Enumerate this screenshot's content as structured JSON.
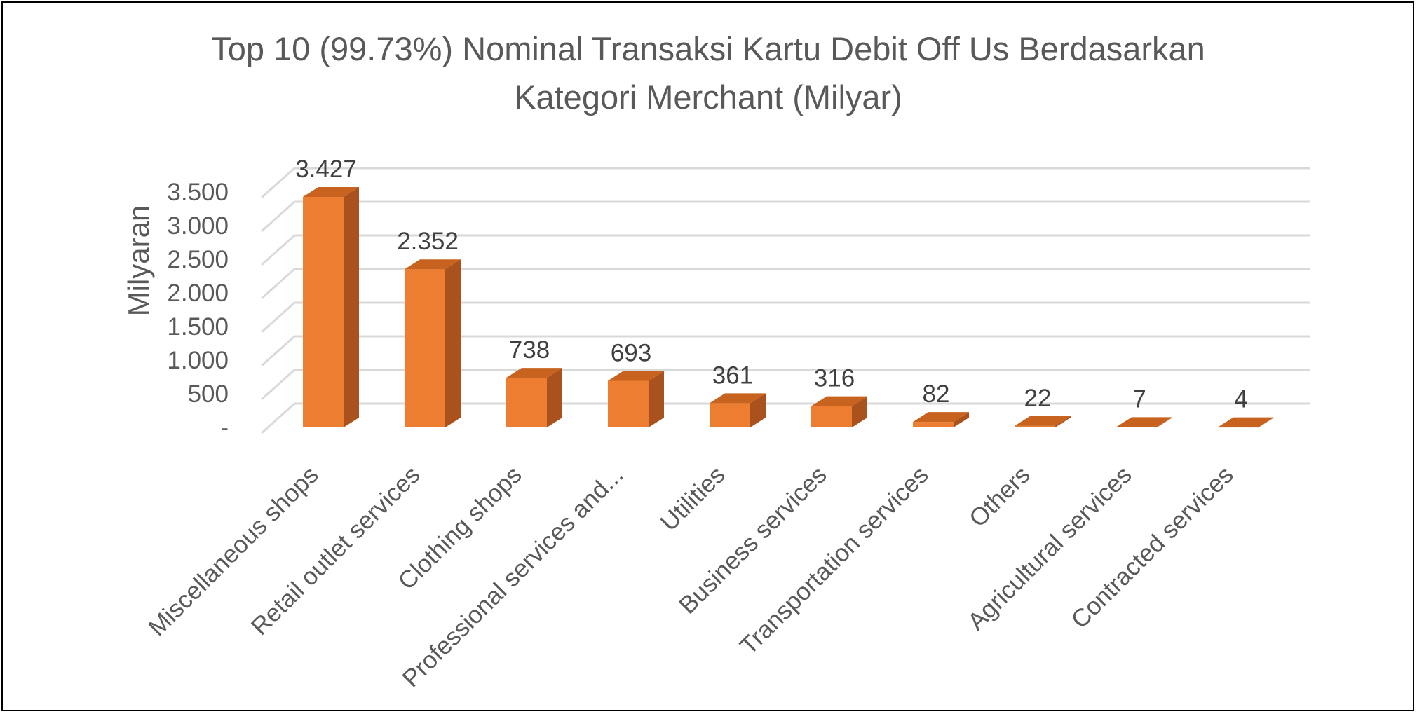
{
  "chart_data": {
    "type": "bar",
    "title_lines": [
      "Top 10 (99.73%) Nominal Transaksi Kartu Debit Off Us Berdasarkan",
      "Kategori Merchant (Milyar)"
    ],
    "ylabel": "Milyaran",
    "xlabel": "",
    "ylim": [
      0,
      3500
    ],
    "y_ticks": [
      {
        "value": 0,
        "label": "-"
      },
      {
        "value": 500,
        "label": "500"
      },
      {
        "value": 1000,
        "label": "1.000"
      },
      {
        "value": 1500,
        "label": "1.500"
      },
      {
        "value": 2000,
        "label": "2.000"
      },
      {
        "value": 2500,
        "label": "2.500"
      },
      {
        "value": 3000,
        "label": "3.000"
      },
      {
        "value": 3500,
        "label": "3.500"
      }
    ],
    "categories": [
      "Miscellaneous shops",
      "Retail outlet services",
      "Clothing shops",
      "Professional services and...",
      "Utilities",
      "Business services",
      "Transportation services",
      "Others",
      "Agricultural services",
      "Contracted services"
    ],
    "values": [
      3427,
      2352,
      738,
      693,
      361,
      316,
      82,
      22,
      7,
      4
    ],
    "data_labels": [
      "3.427",
      "2.352",
      "738",
      "693",
      "361",
      "316",
      "82",
      "22",
      "7",
      "4"
    ],
    "bar_color": "#ED7D31",
    "bar_side_color": "#A9521E",
    "bar_top_color": "#C8631F",
    "grid": true,
    "legend": "none",
    "style": "3d-column"
  }
}
